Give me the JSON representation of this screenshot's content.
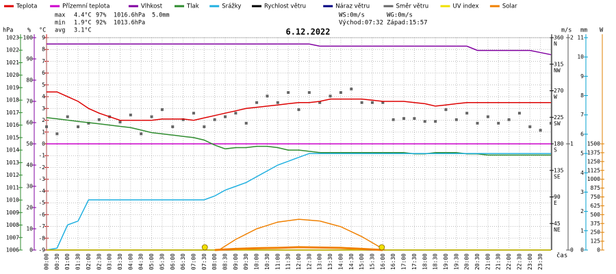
{
  "chart_data": {
    "type": "line",
    "title": "6.12.2022",
    "time_label": "čas",
    "stats": [
      {
        "label": "max",
        "items": [
          "4.4°C",
          "97%",
          "1016.6hPa",
          "5.0mm"
        ]
      },
      {
        "label": "min",
        "items": [
          "1.9°C",
          "92%",
          "1013.6hPa"
        ]
      },
      {
        "label": "avg",
        "items": [
          "3.1°C"
        ]
      }
    ],
    "stats_colors": [
      "#cc0000",
      "#8000a0",
      "#6040c0",
      "#00a0d0"
    ],
    "wind_info": [
      [
        "WS:0m/s",
        "WG:0m/s"
      ],
      [
        "Východ:07:32",
        "Západ:15:57"
      ]
    ],
    "sun_markers": [
      7.53,
      15.95
    ],
    "axes": [
      {
        "unit": "hPa",
        "color": "#2e8b2e",
        "ylim": [
          1006,
          1023
        ],
        "yticks": [
          1006,
          1007,
          1008,
          1009,
          1010,
          1011,
          1012,
          1013,
          1014,
          1015,
          1016,
          1017,
          1018,
          1019,
          1020,
          1021,
          1022,
          1023
        ]
      },
      {
        "unit": "%",
        "color": "#8000a0",
        "ylim": [
          0,
          100
        ],
        "yticks": [
          0,
          10,
          20,
          30,
          40,
          50,
          60,
          70,
          80,
          90,
          100
        ]
      },
      {
        "unit": "°C",
        "color": "#cc0000",
        "ylim": [
          -9,
          9
        ],
        "yticks": [
          -9,
          -8,
          -7,
          -6,
          -5,
          -4,
          -3,
          -2,
          -1,
          0,
          1,
          2,
          3,
          4,
          5,
          6,
          7,
          8,
          9
        ],
        "grid": true
      },
      {
        "color": "#000000",
        "ylim": [
          0,
          360
        ],
        "yticks": [
          45,
          90,
          135,
          180,
          225,
          270,
          315,
          360
        ],
        "compass": [
          "NE",
          "E",
          "SE",
          "S",
          "SW",
          "W",
          "NW",
          "N"
        ]
      },
      {
        "unit": "m/s",
        "color": "#555555",
        "ylim": [
          0,
          2
        ],
        "yticks": [
          0,
          1,
          2
        ]
      },
      {
        "unit": "mm",
        "color": "#00a0d0",
        "ylim": [
          0,
          11
        ],
        "yticks": [
          0,
          1,
          2,
          3,
          4,
          5,
          6,
          7,
          8,
          9,
          10,
          11
        ]
      },
      {
        "unit": "W",
        "color": "#e08000",
        "ylim": [
          0,
          3000
        ],
        "yticks": [
          0,
          125,
          250,
          375,
          500,
          625,
          750,
          875,
          1000,
          1125,
          1250,
          1375,
          1500
        ]
      }
    ],
    "xlim": [
      0,
      24
    ],
    "xticks": [
      {
        "value": 0,
        "label": "00:00"
      },
      {
        "value": 0.5,
        "label": "00:30"
      },
      {
        "value": 1,
        "label": "01:00"
      },
      {
        "value": 1.5,
        "label": "01:30"
      },
      {
        "value": 2,
        "label": "02:00"
      },
      {
        "value": 2.5,
        "label": "02:30"
      },
      {
        "value": 3,
        "label": "03:00"
      },
      {
        "value": 3.5,
        "label": "03:30"
      },
      {
        "value": 4,
        "label": "04:00"
      },
      {
        "value": 4.5,
        "label": "04:30"
      },
      {
        "value": 5,
        "label": "05:00"
      },
      {
        "value": 5.5,
        "label": "05:30"
      },
      {
        "value": 6,
        "label": "06:00"
      },
      {
        "value": 6.5,
        "label": "06:30"
      },
      {
        "value": 7,
        "label": "07:00"
      },
      {
        "value": 7.5,
        "label": "07:30"
      },
      {
        "value": 8,
        "label": "08:00"
      },
      {
        "value": 8.5,
        "label": "08:30"
      },
      {
        "value": 9,
        "label": "09:00"
      },
      {
        "value": 9.5,
        "label": "09:30"
      },
      {
        "value": 10,
        "label": "10:00"
      },
      {
        "value": 10.5,
        "label": "10:30"
      },
      {
        "value": 11,
        "label": "11:00"
      },
      {
        "value": 11.5,
        "label": "11:30"
      },
      {
        "value": 12,
        "label": "12:00"
      },
      {
        "value": 12.5,
        "label": "12:30"
      },
      {
        "value": 13,
        "label": "13:00"
      },
      {
        "value": 13.5,
        "label": "13:30"
      },
      {
        "value": 14,
        "label": "14:00"
      },
      {
        "value": 14.5,
        "label": "14:30"
      },
      {
        "value": 15,
        "label": "15:00"
      },
      {
        "value": 15.5,
        "label": "15:30"
      },
      {
        "value": 16,
        "label": "16:00"
      },
      {
        "value": 16.5,
        "label": "16:30"
      },
      {
        "value": 17,
        "label": "17:00"
      },
      {
        "value": 17.5,
        "label": "17:30"
      },
      {
        "value": 18,
        "label": "18:00"
      },
      {
        "value": 18.5,
        "label": "18:30"
      },
      {
        "value": 19,
        "label": "19:00"
      },
      {
        "value": 19.5,
        "label": "19:30"
      },
      {
        "value": 20,
        "label": "20:00"
      },
      {
        "value": 20.5,
        "label": "20:30"
      },
      {
        "value": 21,
        "label": "21:00"
      },
      {
        "value": 21.5,
        "label": "21:30"
      },
      {
        "value": 22,
        "label": "22:00"
      },
      {
        "value": 22.5,
        "label": "22:30"
      },
      {
        "value": 23,
        "label": "23:00"
      },
      {
        "value": 23.5,
        "label": "23:30"
      }
    ],
    "x": [
      0,
      0.5,
      1,
      1.5,
      2,
      2.5,
      3,
      3.5,
      4,
      4.5,
      5,
      5.5,
      6,
      6.5,
      7,
      7.5,
      8,
      8.5,
      9,
      9.5,
      10,
      10.5,
      11,
      11.5,
      12,
      12.5,
      13,
      13.5,
      14,
      14.5,
      15,
      15.5,
      16,
      16.5,
      17,
      17.5,
      18,
      18.5,
      19,
      19.5,
      20,
      20.5,
      21,
      21.5,
      22,
      22.5,
      23,
      23.5,
      24
    ],
    "series": [
      {
        "name": "Teplota",
        "color": "#dd0000",
        "axis": 2,
        "values": [
          4.4,
          4.4,
          4.0,
          3.6,
          3.0,
          2.6,
          2.3,
          2.0,
          2.0,
          2.0,
          2.0,
          2.1,
          2.1,
          2.1,
          2.0,
          2.2,
          2.4,
          2.6,
          2.8,
          3.0,
          3.1,
          3.2,
          3.3,
          3.4,
          3.5,
          3.5,
          3.6,
          3.8,
          3.8,
          3.8,
          3.8,
          3.7,
          3.6,
          3.6,
          3.6,
          3.5,
          3.4,
          3.2,
          3.3,
          3.4,
          3.5,
          3.5,
          3.5,
          3.5,
          3.5,
          3.5,
          3.5,
          3.5,
          3.5
        ]
      },
      {
        "name": "Přízemní teplota",
        "color": "#cc00cc",
        "axis": 2,
        "x": [
          0,
          24
        ],
        "values": [
          0,
          0
        ]
      },
      {
        "name": "Vlhkost",
        "color": "#8000a0",
        "axis": 1,
        "values": [
          97,
          97,
          97,
          97,
          97,
          97,
          97,
          97,
          97,
          97,
          97,
          97,
          97,
          97,
          97,
          97,
          97,
          97,
          97,
          97,
          97,
          97,
          97,
          97,
          97,
          97,
          96,
          96,
          96,
          96,
          96,
          96,
          96,
          96,
          96,
          96,
          96,
          96,
          96,
          96,
          96,
          94,
          94,
          94,
          94,
          94,
          94,
          93,
          92
        ]
      },
      {
        "name": "Tlak",
        "color": "#2e8b2e",
        "axis": 0,
        "values": [
          1016.6,
          1016.5,
          1016.4,
          1016.3,
          1016.2,
          1016.1,
          1016.0,
          1015.9,
          1015.8,
          1015.6,
          1015.4,
          1015.3,
          1015.2,
          1015.1,
          1015.0,
          1014.8,
          1014.4,
          1014.1,
          1014.2,
          1014.2,
          1014.3,
          1014.3,
          1014.2,
          1014.0,
          1014.0,
          1013.9,
          1013.8,
          1013.8,
          1013.8,
          1013.8,
          1013.8,
          1013.8,
          1013.8,
          1013.8,
          1013.8,
          1013.7,
          1013.7,
          1013.8,
          1013.8,
          1013.8,
          1013.7,
          1013.7,
          1013.6,
          1013.6,
          1013.6,
          1013.6,
          1013.6,
          1013.6,
          1013.6
        ]
      },
      {
        "name": "Srážky",
        "color": "#20b0e0",
        "axis": 5,
        "values": [
          0,
          0.1,
          1.3,
          1.5,
          2.6,
          2.6,
          2.6,
          2.6,
          2.6,
          2.6,
          2.6,
          2.6,
          2.6,
          2.6,
          2.6,
          2.6,
          2.8,
          3.1,
          3.3,
          3.5,
          3.8,
          4.1,
          4.4,
          4.6,
          4.8,
          5.0,
          5.0,
          5.0,
          5.0,
          5.0,
          5.0,
          5.0,
          5.0,
          5.0,
          5.0,
          5.0,
          5.0,
          5.0,
          5.0,
          5.0,
          5.0,
          5.0,
          5.0,
          5.0,
          5.0,
          5.0,
          5.0,
          5.0,
          5.0
        ]
      },
      {
        "name": "Rychlost větru",
        "color": "#000000",
        "axis": 4,
        "x": [
          0,
          24
        ],
        "values": [
          0,
          0
        ]
      },
      {
        "name": "Náraz větru",
        "color": "#000080",
        "axis": 4,
        "x": [
          0,
          24
        ],
        "values": [
          0,
          0
        ]
      },
      {
        "name": "Směr větru",
        "color": "#666666",
        "axis": 3,
        "type": "scatter",
        "values": [
          209,
          197,
          226,
          209,
          215,
          221,
          226,
          217,
          229,
          197,
          226,
          238,
          209,
          221,
          232,
          209,
          221,
          226,
          232,
          215,
          250,
          261,
          250,
          267,
          238,
          267,
          250,
          261,
          267,
          273,
          250,
          250,
          250,
          221,
          223,
          223,
          218,
          218,
          238,
          221,
          232,
          215,
          226,
          215,
          221,
          232,
          209,
          203,
          215
        ]
      },
      {
        "name": "UV index",
        "color": "#f0e000",
        "axis": 5,
        "x": [
          0,
          24
        ],
        "values": [
          0,
          0
        ]
      },
      {
        "name": "Solar",
        "color": "#f08000",
        "axis": 6,
        "x": [
          8,
          9,
          10,
          11,
          12,
          13,
          14,
          15,
          16
        ],
        "values": [
          0,
          15,
          25,
          30,
          40,
          35,
          30,
          15,
          0
        ],
        "envelope_x": [
          8.2,
          9,
          10,
          11,
          12,
          13,
          14,
          15,
          16.1
        ],
        "envelope": [
          0,
          150,
          300,
          395,
          435,
          410,
          330,
          190,
          0
        ]
      }
    ]
  }
}
